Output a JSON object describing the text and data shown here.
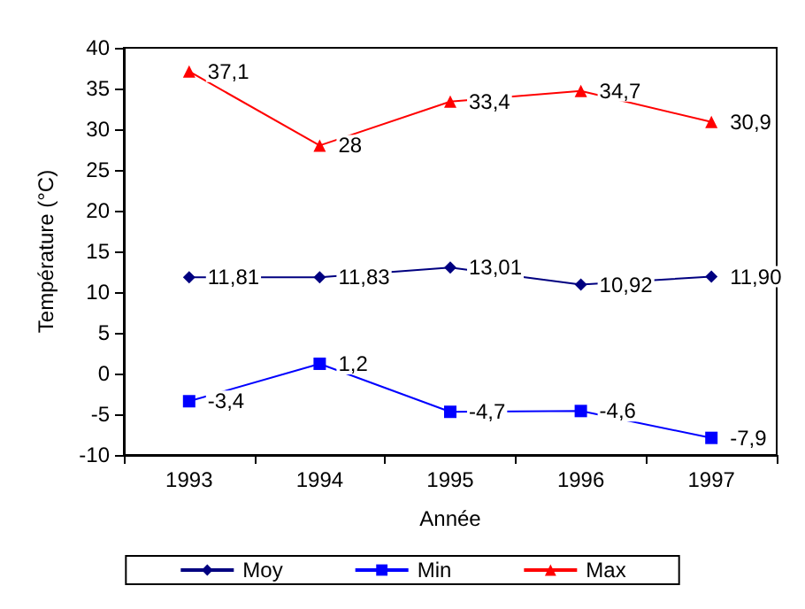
{
  "chart_data": {
    "type": "line",
    "xlabel": "Année",
    "ylabel": "Température (°C)",
    "categories": [
      "1993",
      "1994",
      "1995",
      "1996",
      "1997"
    ],
    "series": [
      {
        "name": "Moy",
        "color": "#000080",
        "marker": "diamond",
        "values": [
          11.81,
          11.83,
          13.01,
          10.92,
          11.9
        ],
        "value_labels": [
          "11,81",
          "11,83",
          "13,01",
          "10,92",
          "11,90"
        ]
      },
      {
        "name": "Min",
        "color": "#0000ff",
        "marker": "square",
        "values": [
          -3.4,
          1.2,
          -4.7,
          -4.6,
          -7.9
        ],
        "value_labels": [
          "-3,4",
          "1,2",
          "-4,7",
          "-4,6",
          "-7,9"
        ]
      },
      {
        "name": "Max",
        "color": "#ff0000",
        "marker": "triangle",
        "values": [
          37.1,
          28,
          33.4,
          34.7,
          30.9
        ],
        "value_labels": [
          "37,1",
          "28",
          "33,4",
          "34,7",
          "30,9"
        ]
      }
    ],
    "ylim": [
      -10,
      40
    ],
    "yticks": [
      -10,
      -5,
      0,
      5,
      10,
      15,
      20,
      25,
      30,
      35,
      40
    ],
    "grid": false,
    "legend": "bottom",
    "line_style": "solid"
  }
}
